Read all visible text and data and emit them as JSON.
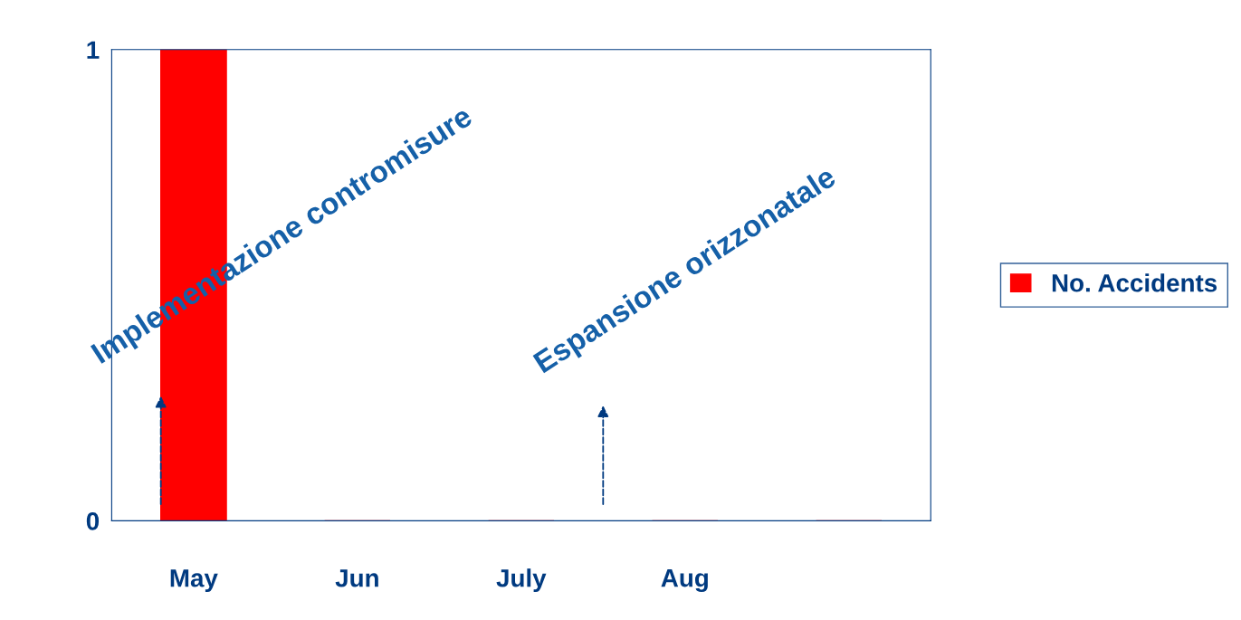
{
  "chart_data": {
    "type": "bar",
    "categories": [
      "May",
      "Jun",
      "July",
      "Aug",
      null
    ],
    "series": [
      {
        "name": "No. Accidents",
        "color": "#ff0000",
        "values": [
          1,
          0,
          0,
          0,
          0
        ]
      }
    ],
    "ylim": [
      0,
      1
    ],
    "yticks": [
      0,
      1
    ],
    "annotations": [
      "Implementazione contromisure",
      "Espansione orizzonatale"
    ],
    "legend": "right",
    "grid": false
  }
}
